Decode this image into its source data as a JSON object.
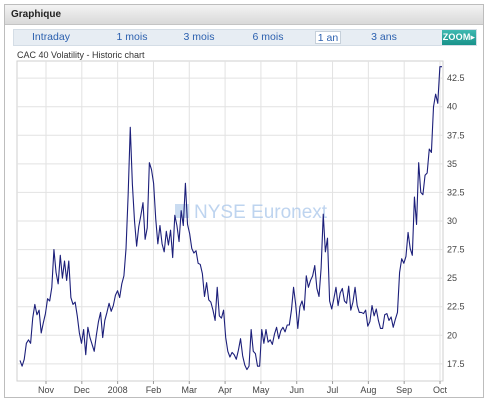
{
  "panel": {
    "title": "Graphique"
  },
  "tabs": [
    {
      "label": "Intraday",
      "active": false
    },
    {
      "label": "1 mois",
      "active": false
    },
    {
      "label": "3 mois",
      "active": false
    },
    {
      "label": "6 mois",
      "active": false
    },
    {
      "label": "1 an",
      "active": true
    },
    {
      "label": "3 ans",
      "active": false
    }
  ],
  "zoom_label": "ZOOM",
  "watermark": "NYSE Euronext",
  "colors": {
    "line": "#1c1f7a",
    "grid": "#e2e2e2",
    "accent": "#2a5fae",
    "zoom": "#1fa29a"
  },
  "chart_data": {
    "type": "line",
    "title": "CAC 40 Volatility - Historic chart",
    "xlabel": "",
    "ylabel": "",
    "ylim": [
      16,
      44
    ],
    "y_ticks": [
      17.5,
      20,
      22.5,
      25,
      27.5,
      30,
      32.5,
      35,
      37.5,
      40,
      42.5
    ],
    "y_tick_labels": [
      "17.5",
      "20",
      "22.5",
      "25",
      "27.5",
      "30",
      "32.5",
      "35",
      "37.5",
      "40",
      "42.5"
    ],
    "x_ticks": [
      "Nov",
      "Dec",
      "2008",
      "Feb",
      "Mar",
      "Apr",
      "May",
      "Jun",
      "Jul",
      "Aug",
      "Sep",
      "Oct"
    ],
    "grid": true,
    "series": [
      {
        "values": [
          17.8,
          17.3,
          17.9,
          19.3,
          19.6,
          19.3,
          21.5,
          22.7,
          21.8,
          22.2,
          20.2,
          21.1,
          21.9,
          23.2,
          23.0,
          24.2,
          27.5,
          25.5,
          24.5,
          27.0,
          25.0,
          26.5,
          24.8,
          26.5,
          23.3,
          22.7,
          22.9,
          21.7,
          20.2,
          19.3,
          20.5,
          18.3,
          20.7,
          19.8,
          19.2,
          18.6,
          20.0,
          21.2,
          22.0,
          19.8,
          21.3,
          22.0,
          22.8,
          22.1,
          22.6,
          23.5,
          23.9,
          23.3,
          24.5,
          25.2,
          27.6,
          32.3,
          38.2,
          33.2,
          30.0,
          27.8,
          29.5,
          30.5,
          31.6,
          28.4,
          29.4,
          35.1,
          34.5,
          33.3,
          30.2,
          28.0,
          29.6,
          28.0,
          27.3,
          29.1,
          27.9,
          29.2,
          26.8,
          30.5,
          29.6,
          28.2,
          30.9,
          29.6,
          33.3,
          29.7,
          28.9,
          27.6,
          27.2,
          27.4,
          26.3,
          26.2,
          25.4,
          23.4,
          24.6,
          23.1,
          22.9,
          22.2,
          21.3,
          24.2,
          21.7,
          21.5,
          22.2,
          19.8,
          18.6,
          18.1,
          18.5,
          18.3,
          17.9,
          18.7,
          19.7,
          18.2,
          17.4,
          17.0,
          17.3,
          20.5,
          18.6,
          18.4,
          17.3,
          17.3,
          20.5,
          19.3,
          20.5,
          19.4,
          19.6,
          19.2,
          20.1,
          20.7,
          19.7,
          20.4,
          20.7,
          20.3,
          20.9,
          20.9,
          22.2,
          24.2,
          22.7,
          20.6,
          22.5,
          23.0,
          22.2,
          25.2,
          24.2,
          24.8,
          25.2,
          26.1,
          24.1,
          23.4,
          25.9,
          30.6,
          27.3,
          28.5,
          23.0,
          22.3,
          23.2,
          24.2,
          22.6,
          23.7,
          24.1,
          23.0,
          22.8,
          24.3,
          22.2,
          22.9,
          24.2,
          22.6,
          22.0,
          22.0,
          21.9,
          22.2,
          20.8,
          21.2,
          22.6,
          21.7,
          22.3,
          21.3,
          20.6,
          20.6,
          21.8,
          21.9,
          21.3,
          21.6,
          20.7,
          21.4,
          22.0,
          25.5,
          26.7,
          26.3,
          26.9,
          29.0,
          27.6,
          27.0,
          32.1,
          29.7,
          35.1,
          32.5,
          32.3,
          34.0,
          34.2,
          36.3,
          36.0,
          40.0,
          41.1,
          40.3,
          43.5,
          43.5
        ]
      }
    ]
  }
}
